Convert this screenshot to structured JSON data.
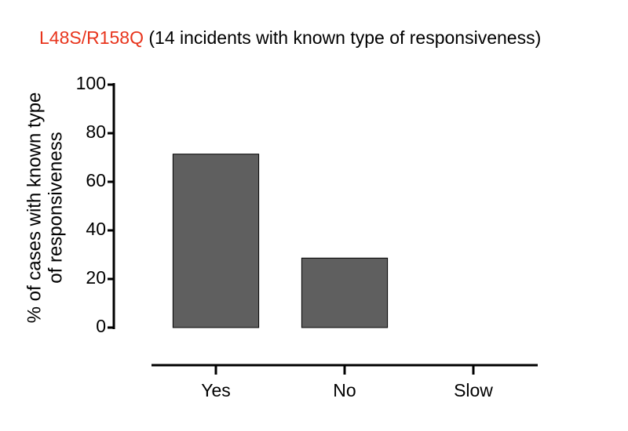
{
  "chart_data": {
    "type": "bar",
    "title": [
      "L48S/R158Q",
      "(14 incidents with known type of responsiveness)"
    ],
    "title_colors": [
      "#e8341c",
      "#000000"
    ],
    "y_label": [
      "% of cases with  known type",
      "of responsiveness"
    ],
    "categories": [
      "Yes",
      "No",
      "Slow"
    ],
    "values": [
      71.4,
      28.6,
      0
    ],
    "color": "#5f5f5f",
    "ylim": [
      0,
      100
    ],
    "yticks": [
      0,
      20,
      40,
      60,
      80,
      100
    ],
    "grid": false
  }
}
